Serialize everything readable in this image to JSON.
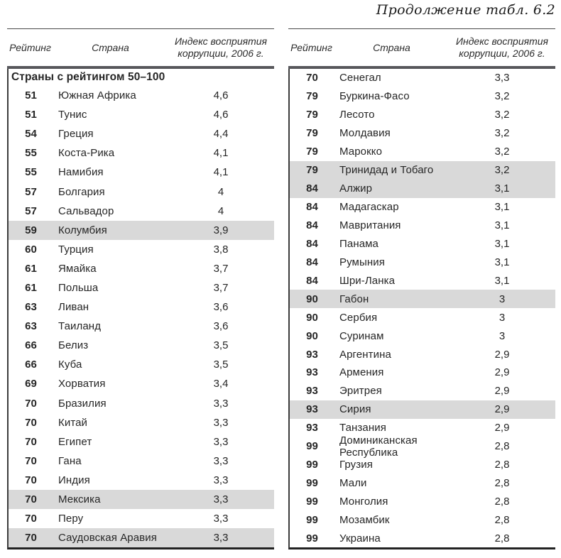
{
  "page": {
    "title": "Продолжение табл. 6.2"
  },
  "header": {
    "rank": "Рейтинг",
    "country": "Страна",
    "index": "Индекс восприятия коррупции, 2006 г."
  },
  "colors": {
    "row_highlight": "#d9d9d9",
    "thick_rule": "#57575b",
    "bottom_rule": "#222222"
  },
  "left_table": {
    "section_header": "Страны с рейтингом 50–100",
    "rows": [
      {
        "rank": "51",
        "country": "Южная Африка",
        "index": "4,6",
        "highlight": false
      },
      {
        "rank": "51",
        "country": "Тунис",
        "index": "4,6",
        "highlight": false
      },
      {
        "rank": "54",
        "country": "Греция",
        "index": "4,4",
        "highlight": false
      },
      {
        "rank": "55",
        "country": "Коста-Рика",
        "index": "4,1",
        "highlight": false
      },
      {
        "rank": "55",
        "country": "Намибия",
        "index": "4,1",
        "highlight": false
      },
      {
        "rank": "57",
        "country": "Болгария",
        "index": "4",
        "highlight": false
      },
      {
        "rank": "57",
        "country": "Сальвадор",
        "index": "4",
        "highlight": false
      },
      {
        "rank": "59",
        "country": "Колумбия",
        "index": "3,9",
        "highlight": true
      },
      {
        "rank": "60",
        "country": "Турция",
        "index": "3,8",
        "highlight": false
      },
      {
        "rank": "61",
        "country": "Ямайка",
        "index": "3,7",
        "highlight": false
      },
      {
        "rank": "61",
        "country": "Польша",
        "index": "3,7",
        "highlight": false
      },
      {
        "rank": "63",
        "country": "Ливан",
        "index": "3,6",
        "highlight": false
      },
      {
        "rank": "63",
        "country": "Таиланд",
        "index": "3,6",
        "highlight": false
      },
      {
        "rank": "66",
        "country": "Белиз",
        "index": "3,5",
        "highlight": false
      },
      {
        "rank": "66",
        "country": "Куба",
        "index": "3,5",
        "highlight": false
      },
      {
        "rank": "69",
        "country": "Хорватия",
        "index": "3,4",
        "highlight": false
      },
      {
        "rank": "70",
        "country": "Бразилия",
        "index": "3,3",
        "highlight": false
      },
      {
        "rank": "70",
        "country": "Китай",
        "index": "3,3",
        "highlight": false
      },
      {
        "rank": "70",
        "country": "Египет",
        "index": "3,3",
        "highlight": false
      },
      {
        "rank": "70",
        "country": "Гана",
        "index": "3,3",
        "highlight": false
      },
      {
        "rank": "70",
        "country": "Индия",
        "index": "3,3",
        "highlight": false
      },
      {
        "rank": "70",
        "country": "Мексика",
        "index": "3,3",
        "highlight": true
      },
      {
        "rank": "70",
        "country": "Перу",
        "index": "3,3",
        "highlight": false
      },
      {
        "rank": "70",
        "country": "Саудовская Аравия",
        "index": "3,3",
        "highlight": true
      }
    ]
  },
  "right_table": {
    "rows": [
      {
        "rank": "70",
        "country": "Сенегал",
        "index": "3,3",
        "highlight": false
      },
      {
        "rank": "79",
        "country": "Буркина-Фасо",
        "index": "3,2",
        "highlight": false
      },
      {
        "rank": "79",
        "country": "Лесото",
        "index": "3,2",
        "highlight": false
      },
      {
        "rank": "79",
        "country": "Молдавия",
        "index": "3,2",
        "highlight": false
      },
      {
        "rank": "79",
        "country": "Марокко",
        "index": "3,2",
        "highlight": false
      },
      {
        "rank": "79",
        "country": "Тринидад и Тобаго",
        "index": "3,2",
        "highlight": true
      },
      {
        "rank": "84",
        "country": "Алжир",
        "index": "3,1",
        "highlight": true
      },
      {
        "rank": "84",
        "country": "Мадагаскар",
        "index": "3,1",
        "highlight": false
      },
      {
        "rank": "84",
        "country": "Мавритания",
        "index": "3,1",
        "highlight": false
      },
      {
        "rank": "84",
        "country": "Панама",
        "index": "3,1",
        "highlight": false
      },
      {
        "rank": "84",
        "country": "Румыния",
        "index": "3,1",
        "highlight": false
      },
      {
        "rank": "84",
        "country": "Шри-Ланка",
        "index": "3,1",
        "highlight": false
      },
      {
        "rank": "90",
        "country": "Габон",
        "index": "3",
        "highlight": true
      },
      {
        "rank": "90",
        "country": "Сербия",
        "index": "3",
        "highlight": false
      },
      {
        "rank": "90",
        "country": "Суринам",
        "index": "3",
        "highlight": false
      },
      {
        "rank": "93",
        "country": "Аргентина",
        "index": "2,9",
        "highlight": false
      },
      {
        "rank": "93",
        "country": "Армения",
        "index": "2,9",
        "highlight": false
      },
      {
        "rank": "93",
        "country": "Эритрея",
        "index": "2,9",
        "highlight": false
      },
      {
        "rank": "93",
        "country": "Сирия",
        "index": "2,9",
        "highlight": true
      },
      {
        "rank": "93",
        "country": "Танзания",
        "index": "2,9",
        "highlight": false
      },
      {
        "rank": "99",
        "country": "Доминиканская Республика",
        "index": "2,8",
        "highlight": false
      },
      {
        "rank": "99",
        "country": "Грузия",
        "index": "2,8",
        "highlight": false
      },
      {
        "rank": "99",
        "country": "Мали",
        "index": "2,8",
        "highlight": false
      },
      {
        "rank": "99",
        "country": "Монголия",
        "index": "2,8",
        "highlight": false
      },
      {
        "rank": "99",
        "country": "Мозамбик",
        "index": "2,8",
        "highlight": false
      },
      {
        "rank": "99",
        "country": "Украина",
        "index": "2,8",
        "highlight": false
      }
    ]
  }
}
